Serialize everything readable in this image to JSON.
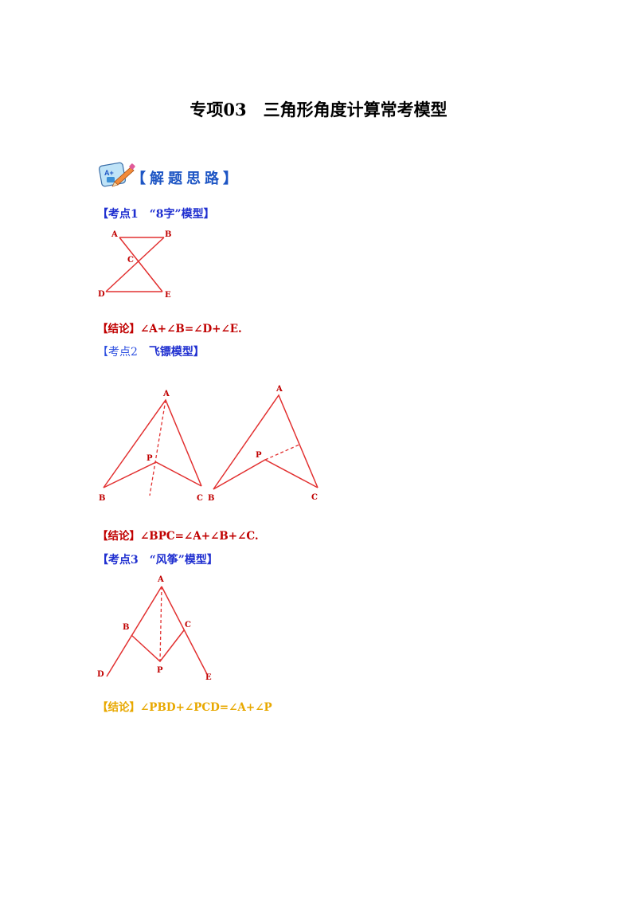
{
  "title": "专项03　三角形角度计算常考模型",
  "banner": {
    "text": "【解题思路】",
    "icon": "pencil-paper-icon"
  },
  "kp1": {
    "title": "【考点1　“8字”模型】",
    "labels": {
      "A": "A",
      "B": "B",
      "C": "C",
      "D": "D",
      "E": "E"
    },
    "conclusion_prefix": "【结论】",
    "conclusion_text": "∠A+∠B=∠D+∠E."
  },
  "kp2": {
    "title_prefix": "【考点2　",
    "title_main": "飞镖模型】",
    "fig1_labels": {
      "A": "A",
      "P": "P",
      "B": "B",
      "C": "C"
    },
    "fig2_labels": {
      "A": "A",
      "P": "P",
      "B": "B",
      "C": "C"
    },
    "conclusion_prefix": "【结论】",
    "conclusion_text": "∠BPC=∠A+∠B+∠C."
  },
  "kp3": {
    "title": "【考点3　“风筝”模型】",
    "labels": {
      "A": "A",
      "B": "B",
      "C": "C",
      "D": "D",
      "P": "P",
      "E": "E"
    },
    "conclusion_prefix": "【结论】",
    "conclusion_text": "∠PBD+∠PCD=∠A+∠P"
  },
  "colors": {
    "heading_blue": "#1f2fd0",
    "figure_red": "#e23030",
    "label_red": "#c00000",
    "gold": "#e8a800"
  }
}
